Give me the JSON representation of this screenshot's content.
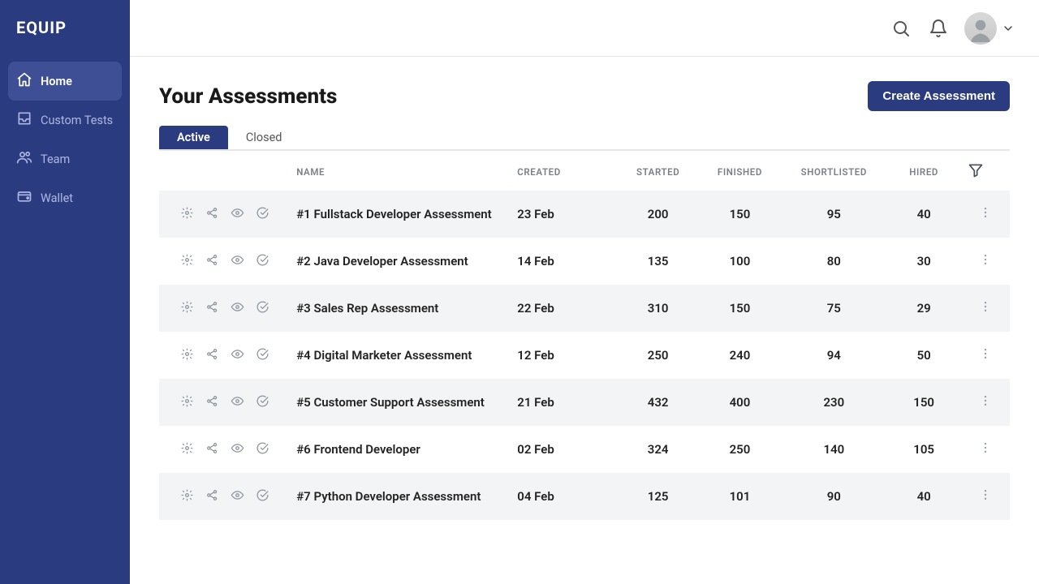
{
  "brand": "EQUIP",
  "colors": {
    "primary": "#2a3b80",
    "primary_light": "#3e4f96",
    "row_alt": "#f3f4f6",
    "muted_text": "#7a7f87"
  },
  "sidebar": {
    "items": [
      {
        "label": "Home",
        "icon": "home-icon",
        "active": true
      },
      {
        "label": "Custom Tests",
        "icon": "inbox-icon",
        "active": false
      },
      {
        "label": "Team",
        "icon": "team-icon",
        "active": false
      },
      {
        "label": "Wallet",
        "icon": "wallet-icon",
        "active": false
      }
    ]
  },
  "topbar": {
    "search_icon": "search",
    "bell_icon": "bell",
    "dropdown_icon": "chevron-down"
  },
  "page": {
    "title": "Your Assessments",
    "create_label": "Create Assessment",
    "tabs": [
      {
        "label": "Active",
        "active": true
      },
      {
        "label": "Closed",
        "active": false
      }
    ],
    "columns": {
      "name": "NAME",
      "created": "CREATED",
      "started": "STARTED",
      "finished": "FINISHED",
      "shortlisted": "SHORTLISTED",
      "hired": "HIRED"
    },
    "rows": [
      {
        "name": "#1 Fullstack Developer Assessment",
        "created": "23 Feb",
        "started": "200",
        "finished": "150",
        "shortlisted": "95",
        "hired": "40"
      },
      {
        "name": "#2 Java Developer Assessment",
        "created": "14 Feb",
        "started": "135",
        "finished": "100",
        "shortlisted": "80",
        "hired": "30"
      },
      {
        "name": "#3 Sales Rep Assessment",
        "created": "22 Feb",
        "started": "310",
        "finished": "150",
        "shortlisted": "75",
        "hired": "29"
      },
      {
        "name": "#4 Digital Marketer Assessment",
        "created": "12 Feb",
        "started": "250",
        "finished": "240",
        "shortlisted": "94",
        "hired": "50"
      },
      {
        "name": "#5 Customer Support Assessment",
        "created": "21 Feb",
        "started": "432",
        "finished": "400",
        "shortlisted": "230",
        "hired": "150"
      },
      {
        "name": "#6 Frontend Developer",
        "created": "02 Feb",
        "started": "324",
        "finished": "250",
        "shortlisted": "140",
        "hired": "105"
      },
      {
        "name": "#7 Python Developer Assessment",
        "created": "04 Feb",
        "started": "125",
        "finished": "101",
        "shortlisted": "90",
        "hired": "40"
      }
    ]
  }
}
